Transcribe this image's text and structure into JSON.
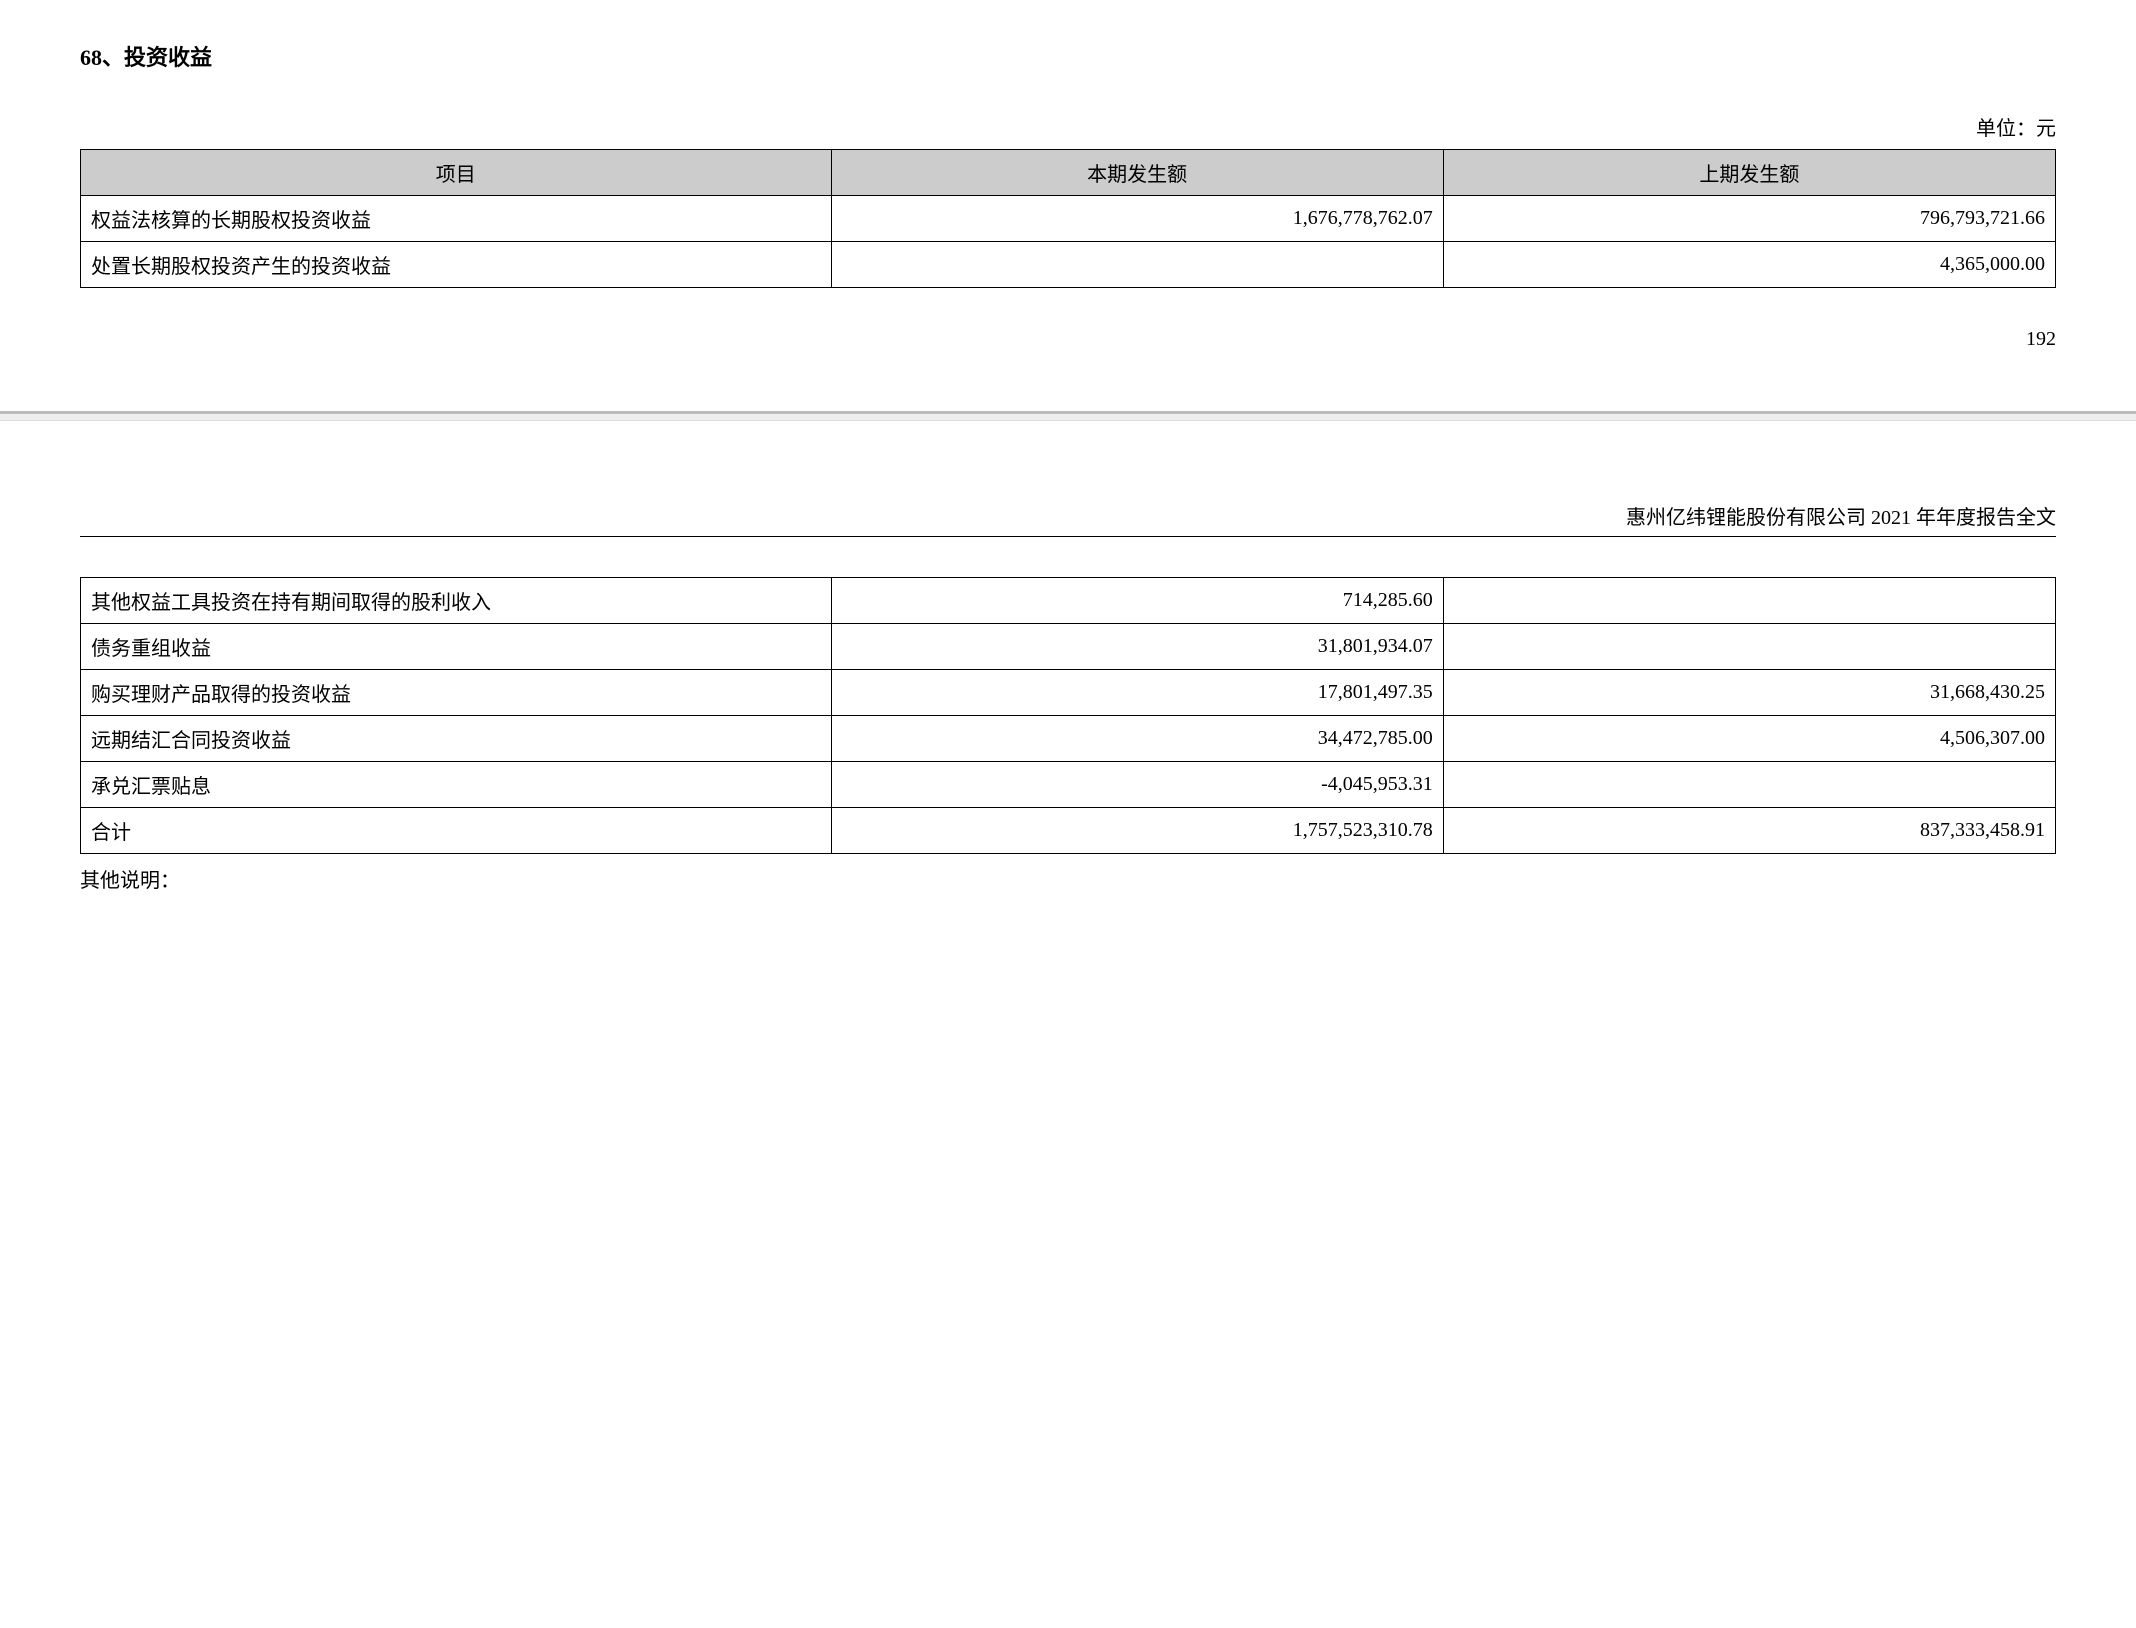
{
  "section_title": "68、投资收益",
  "unit_label": "单位：元",
  "page_number": "192",
  "report_header": "惠州亿纬锂能股份有限公司 2021 年年度报告全文",
  "footer_note": "其他说明：",
  "table1": {
    "headers": {
      "item": "项目",
      "current": "本期发生额",
      "prior": "上期发生额"
    },
    "rows": [
      {
        "item": "权益法核算的长期股权投资收益",
        "current": "1,676,778,762.07",
        "prior": "796,793,721.66"
      },
      {
        "item": "处置长期股权投资产生的投资收益",
        "current": "",
        "prior": "4,365,000.00"
      }
    ]
  },
  "table2": {
    "rows": [
      {
        "item": "其他权益工具投资在持有期间取得的股利收入",
        "current": "714,285.60",
        "prior": ""
      },
      {
        "item": "债务重组收益",
        "current": "31,801,934.07",
        "prior": ""
      },
      {
        "item": "购买理财产品取得的投资收益",
        "current": "17,801,497.35",
        "prior": "31,668,430.25"
      },
      {
        "item": "远期结汇合同投资收益",
        "current": "34,472,785.00",
        "prior": "4,506,307.00"
      },
      {
        "item": "承兑汇票贴息",
        "current": "-4,045,953.31",
        "prior": ""
      },
      {
        "item": "合计",
        "current": "1,757,523,310.78",
        "prior": "837,333,458.91"
      }
    ]
  }
}
